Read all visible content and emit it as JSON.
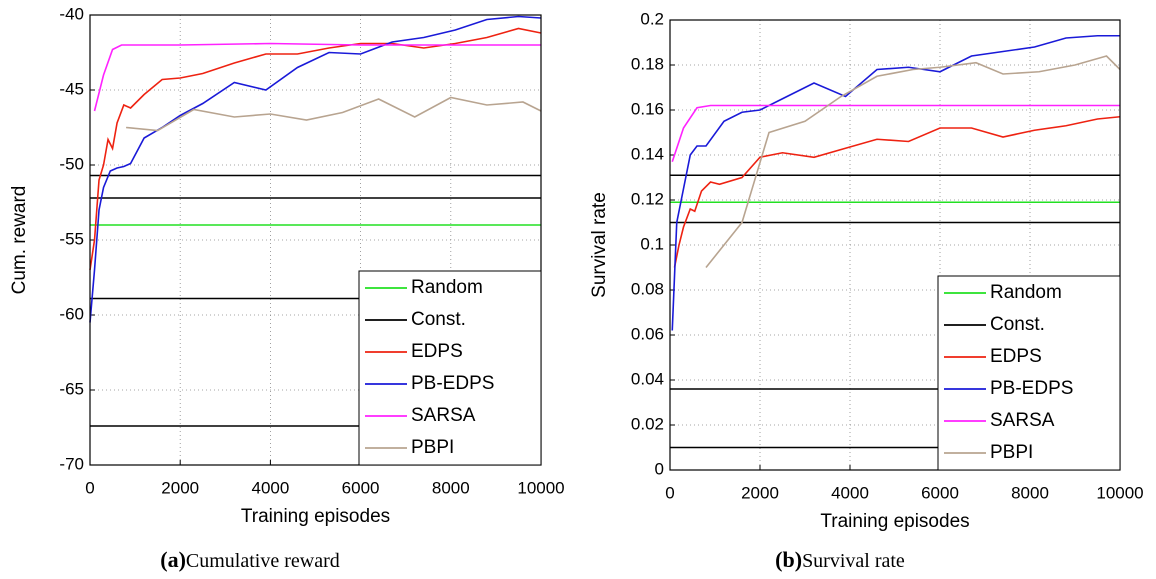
{
  "chart_data": [
    {
      "type": "line",
      "caption_label": "(a)",
      "caption": "Cumulative reward",
      "xlabel": "Training episodes",
      "ylabel": "Cum. reward",
      "xlim": [
        0,
        10000
      ],
      "xticks": [
        0,
        2000,
        4000,
        6000,
        8000,
        10000
      ],
      "ylim": [
        -70,
        -40
      ],
      "yticks": [
        -70,
        -65,
        -60,
        -55,
        -50,
        -45,
        -40
      ],
      "grid": true,
      "legend": "lower right",
      "series": [
        {
          "name": "Random",
          "color": "#22e022",
          "levels": [
            -54
          ]
        },
        {
          "name": "Const.",
          "color": "#000000",
          "levels": [
            -50.7,
            -52.2,
            -58.9,
            -67.4
          ]
        },
        {
          "name": "EDPS",
          "color": "#ee2211",
          "x": [
            0,
            100,
            200,
            300,
            400,
            500,
            600,
            750,
            900,
            1200,
            1600,
            2000,
            2500,
            3200,
            3900,
            4600,
            5300,
            6000,
            6700,
            7400,
            8100,
            8800,
            9500,
            10000
          ],
          "values": [
            -57,
            -55,
            -51,
            -50,
            -48.3,
            -48.9,
            -47.2,
            -46,
            -46.2,
            -45.3,
            -44.3,
            -44.2,
            -43.9,
            -43.2,
            -42.6,
            -42.6,
            -42.2,
            -41.9,
            -41.9,
            -42.2,
            -41.9,
            -41.5,
            -40.9,
            -41.2
          ]
        },
        {
          "name": "PB-EDPS",
          "color": "#1a1ad8",
          "x": [
            0,
            100,
            200,
            300,
            450,
            600,
            750,
            900,
            1200,
            1600,
            2000,
            2500,
            3200,
            3900,
            4600,
            5300,
            6000,
            6700,
            7400,
            8100,
            8800,
            9500,
            10000
          ],
          "values": [
            -60.5,
            -57,
            -53,
            -51.5,
            -50.4,
            -50.2,
            -50.1,
            -49.9,
            -48.2,
            -47.5,
            -46.7,
            -45.9,
            -44.5,
            -45,
            -43.5,
            -42.5,
            -42.6,
            -41.8,
            -41.5,
            -41,
            -40.3,
            -40.1,
            -40.2
          ]
        },
        {
          "name": "SARSA",
          "color": "#ff22ff",
          "x": [
            100,
            300,
            500,
            700,
            1000,
            2000,
            4000,
            6000,
            8000,
            10000
          ],
          "values": [
            -46.4,
            -44,
            -42.3,
            -42,
            -42,
            -42,
            -41.9,
            -42,
            -42,
            -42
          ]
        },
        {
          "name": "PBPI",
          "color": "#b8a490",
          "x": [
            800,
            1500,
            2300,
            3200,
            4000,
            4800,
            5600,
            6400,
            7200,
            8000,
            8800,
            9600,
            10000
          ],
          "values": [
            -47.5,
            -47.7,
            -46.3,
            -46.8,
            -46.6,
            -47,
            -46.5,
            -45.6,
            -46.8,
            -45.5,
            -46,
            -45.8,
            -46.4
          ]
        }
      ]
    },
    {
      "type": "line",
      "caption_label": "(b)",
      "caption": "Survival rate",
      "xlabel": "Training episodes",
      "ylabel": "Survival rate",
      "xlim": [
        0,
        10000
      ],
      "xticks": [
        0,
        2000,
        4000,
        6000,
        8000,
        10000
      ],
      "ylim": [
        0,
        0.2
      ],
      "yticks": [
        0,
        0.02,
        0.04,
        0.06,
        0.08,
        0.1,
        0.12,
        0.14,
        0.16,
        0.18,
        0.2
      ],
      "grid": true,
      "legend": "lower right",
      "series": [
        {
          "name": "Random",
          "color": "#22e022",
          "levels": [
            0.119
          ]
        },
        {
          "name": "Const.",
          "color": "#000000",
          "levels": [
            0.131,
            0.11,
            0.036,
            0.01
          ]
        },
        {
          "name": "EDPS",
          "color": "#ee2211",
          "x": [
            100,
            200,
            300,
            450,
            550,
            700,
            900,
            1100,
            1600,
            2000,
            2500,
            3200,
            3900,
            4600,
            5300,
            6000,
            6700,
            7400,
            8100,
            8800,
            9500,
            10000
          ],
          "values": [
            0.09,
            0.1,
            0.108,
            0.116,
            0.115,
            0.124,
            0.128,
            0.127,
            0.13,
            0.139,
            0.141,
            0.139,
            0.143,
            0.147,
            0.146,
            0.152,
            0.152,
            0.148,
            0.151,
            0.153,
            0.156,
            0.157
          ]
        },
        {
          "name": "PB-EDPS",
          "color": "#1a1ad8",
          "x": [
            50,
            150,
            300,
            450,
            600,
            800,
            1200,
            1600,
            2000,
            2500,
            3200,
            3900,
            4600,
            5300,
            6000,
            6700,
            7400,
            8100,
            8800,
            9500,
            10000
          ],
          "values": [
            0.062,
            0.11,
            0.125,
            0.14,
            0.144,
            0.144,
            0.155,
            0.159,
            0.16,
            0.165,
            0.172,
            0.166,
            0.178,
            0.179,
            0.177,
            0.184,
            0.186,
            0.188,
            0.192,
            0.193,
            0.193
          ]
        },
        {
          "name": "SARSA",
          "color": "#ff22ff",
          "x": [
            50,
            300,
            600,
            900,
            2000,
            4000,
            6000,
            8000,
            10000
          ],
          "values": [
            0.137,
            0.152,
            0.161,
            0.162,
            0.162,
            0.162,
            0.162,
            0.162,
            0.162
          ]
        },
        {
          "name": "PBPI",
          "color": "#b8a490",
          "x": [
            800,
            1600,
            2200,
            3000,
            3800,
            4600,
            5400,
            6000,
            6800,
            7400,
            8200,
            9000,
            9700,
            10000
          ],
          "values": [
            0.09,
            0.11,
            0.15,
            0.155,
            0.166,
            0.175,
            0.178,
            0.179,
            0.181,
            0.176,
            0.177,
            0.18,
            0.184,
            0.178
          ]
        }
      ]
    }
  ]
}
